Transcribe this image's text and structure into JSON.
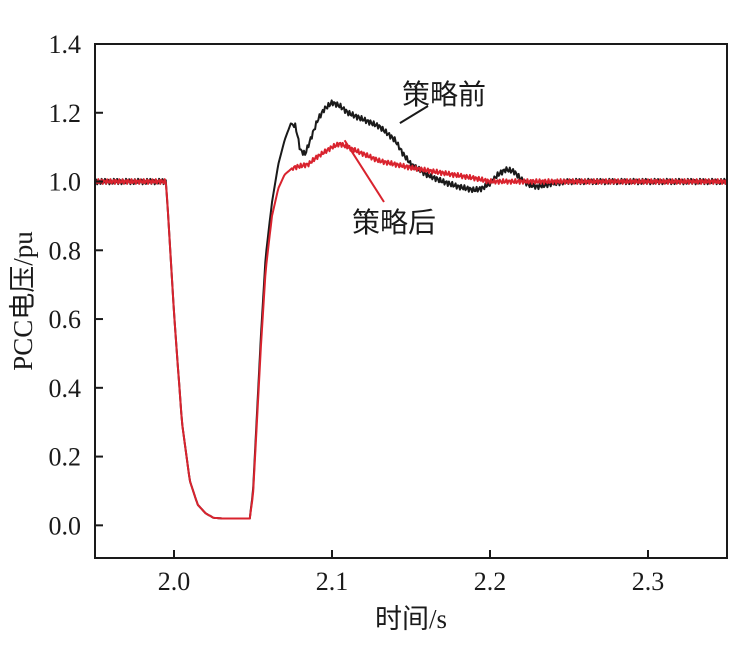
{
  "chart_data": {
    "type": "line",
    "xlabel": "时间/s",
    "ylabel": "PCC电压/pu",
    "xlim": [
      1.95,
      2.35
    ],
    "ylim": [
      -0.095,
      1.4
    ],
    "xticks": [
      2.0,
      2.1,
      2.2,
      2.3
    ],
    "xtick_labels": [
      "2.0",
      "2.1",
      "2.2",
      "2.3"
    ],
    "yticks": [
      0.0,
      0.2,
      0.4,
      0.6,
      0.8,
      1.0,
      1.2,
      1.4
    ],
    "ytick_labels": [
      "0.0",
      "0.2",
      "0.4",
      "0.6",
      "0.8",
      "1.0",
      "1.2",
      "1.4"
    ],
    "grid": false,
    "series": [
      {
        "name": "策略前",
        "color": "#1a1a1a",
        "ripple": 0.008,
        "x": [
          1.95,
          1.995,
          2.0,
          2.005,
          2.01,
          2.015,
          2.02,
          2.025,
          2.03,
          2.035,
          2.04,
          2.045,
          2.048,
          2.05,
          2.052,
          2.055,
          2.058,
          2.062,
          2.066,
          2.07,
          2.074,
          2.077,
          2.08,
          2.083,
          2.087,
          2.091,
          2.095,
          2.1,
          2.105,
          2.11,
          2.115,
          2.12,
          2.13,
          2.14,
          2.145,
          2.15,
          2.16,
          2.17,
          2.18,
          2.19,
          2.195,
          2.2,
          2.205,
          2.21,
          2.215,
          2.22,
          2.225,
          2.23,
          2.24,
          2.25,
          2.3,
          2.35
        ],
        "y": [
          1.0,
          1.0,
          0.62,
          0.3,
          0.13,
          0.06,
          0.035,
          0.022,
          0.02,
          0.02,
          0.02,
          0.02,
          0.02,
          0.1,
          0.28,
          0.55,
          0.78,
          0.94,
          1.05,
          1.12,
          1.17,
          1.16,
          1.09,
          1.08,
          1.13,
          1.18,
          1.21,
          1.23,
          1.22,
          1.2,
          1.19,
          1.18,
          1.16,
          1.12,
          1.08,
          1.05,
          1.02,
          1.0,
          0.985,
          0.975,
          0.98,
          0.995,
          1.02,
          1.035,
          1.03,
          1.005,
          0.99,
          0.985,
          0.995,
          1.0,
          1.0,
          1.0
        ]
      },
      {
        "name": "策略后",
        "color": "#d9232e",
        "ripple": 0.007,
        "x": [
          1.95,
          1.995,
          2.0,
          2.005,
          2.01,
          2.015,
          2.02,
          2.025,
          2.03,
          2.035,
          2.04,
          2.045,
          2.048,
          2.05,
          2.052,
          2.055,
          2.058,
          2.062,
          2.066,
          2.07,
          2.075,
          2.08,
          2.085,
          2.09,
          2.1,
          2.105,
          2.11,
          2.12,
          2.13,
          2.14,
          2.15,
          2.17,
          2.19,
          2.2,
          2.22,
          2.25,
          2.3,
          2.35
        ],
        "y": [
          1.0,
          1.0,
          0.62,
          0.3,
          0.13,
          0.06,
          0.035,
          0.022,
          0.02,
          0.02,
          0.02,
          0.02,
          0.02,
          0.09,
          0.26,
          0.52,
          0.74,
          0.9,
          0.98,
          1.02,
          1.04,
          1.045,
          1.05,
          1.07,
          1.1,
          1.11,
          1.1,
          1.08,
          1.06,
          1.05,
          1.04,
          1.025,
          1.01,
          1.0,
          1.0,
          1.0,
          1.0,
          1.0
        ]
      }
    ],
    "annotations": [
      {
        "text": "策略前",
        "series": 0,
        "target_x": 2.143,
        "target_y": 1.17
      },
      {
        "text": "策略后",
        "series": 1,
        "target_x": 2.108,
        "target_y": 1.12
      }
    ]
  }
}
